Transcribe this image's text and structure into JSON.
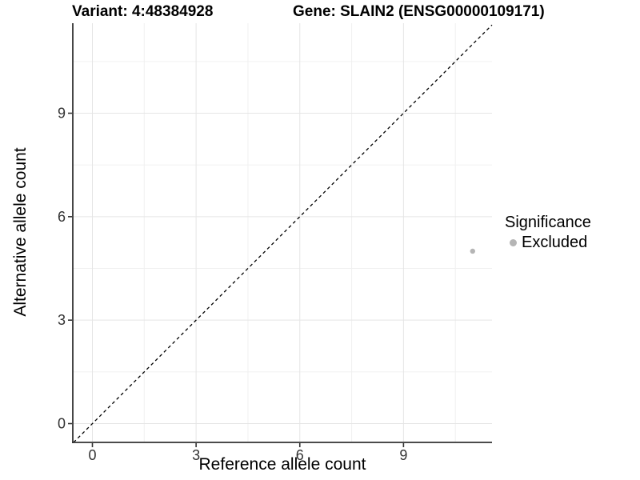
{
  "header": {
    "variant_title": "Variant: 4:48384928",
    "gene_title": "Gene: SLAIN2 (ENSG00000109171)"
  },
  "legend": {
    "title": "Significance",
    "items": [
      {
        "label": "Excluded",
        "color": "#b5b5b5"
      }
    ]
  },
  "chart_data": {
    "type": "scatter",
    "title": "Variant: 4:48384928    Gene: SLAIN2 (ENSG00000109171)",
    "xlabel": "Reference allele count",
    "ylabel": "Alternative allele count",
    "x_ticks": [
      0,
      3,
      6,
      9
    ],
    "y_ticks": [
      0,
      3,
      6,
      9
    ],
    "x_minor_ticks": [
      1.5,
      4.5,
      7.5,
      10.5
    ],
    "y_minor_ticks": [
      1.5,
      4.5,
      7.5,
      10.5
    ],
    "xlim": [
      -0.567,
      11.56
    ],
    "ylim": [
      -0.545,
      11.61
    ],
    "grid": "major+minor",
    "legend_position": "right",
    "series": [
      {
        "name": "Excluded",
        "color": "#b5b5b5",
        "points": [
          {
            "x": 11,
            "y": 5
          }
        ]
      }
    ],
    "reference_line": {
      "slope": 1,
      "intercept": 0,
      "style": "dashed",
      "color": "#000000"
    },
    "style": {
      "grid_major": "#e5e5e5",
      "grid_minor": "#f0f0f0",
      "axis_line": "#333333",
      "tick_color": "#333333",
      "tick_label_color": "#333333"
    }
  }
}
